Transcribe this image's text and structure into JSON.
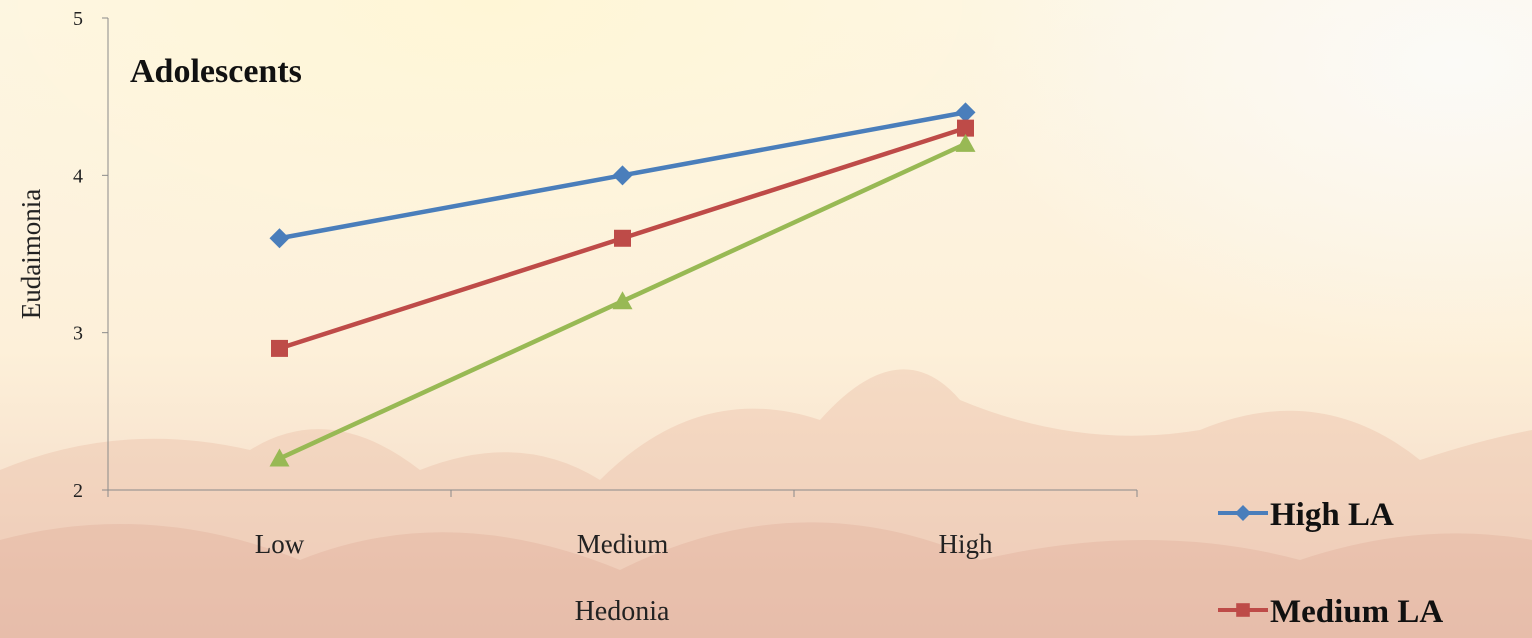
{
  "chart_data": {
    "type": "line",
    "title": "Adolescents",
    "xlabel": "Hedonia",
    "ylabel": "Eudaimonia",
    "categories": [
      "Low",
      "Medium",
      "High"
    ],
    "ylim": [
      2,
      5
    ],
    "yticks": [
      2,
      3,
      4,
      5
    ],
    "grid": false,
    "legend_position": "bottom-right",
    "series": [
      {
        "name": "High LA",
        "color": "#4a7ebb",
        "marker": "diamond",
        "values": [
          3.6,
          4.0,
          4.4
        ]
      },
      {
        "name": "Medium LA",
        "color": "#be4b48",
        "marker": "square",
        "values": [
          2.9,
          3.6,
          4.3
        ]
      },
      {
        "name": "",
        "color": "#98b954",
        "marker": "triangle",
        "values": [
          2.2,
          3.2,
          4.2
        ]
      }
    ]
  }
}
